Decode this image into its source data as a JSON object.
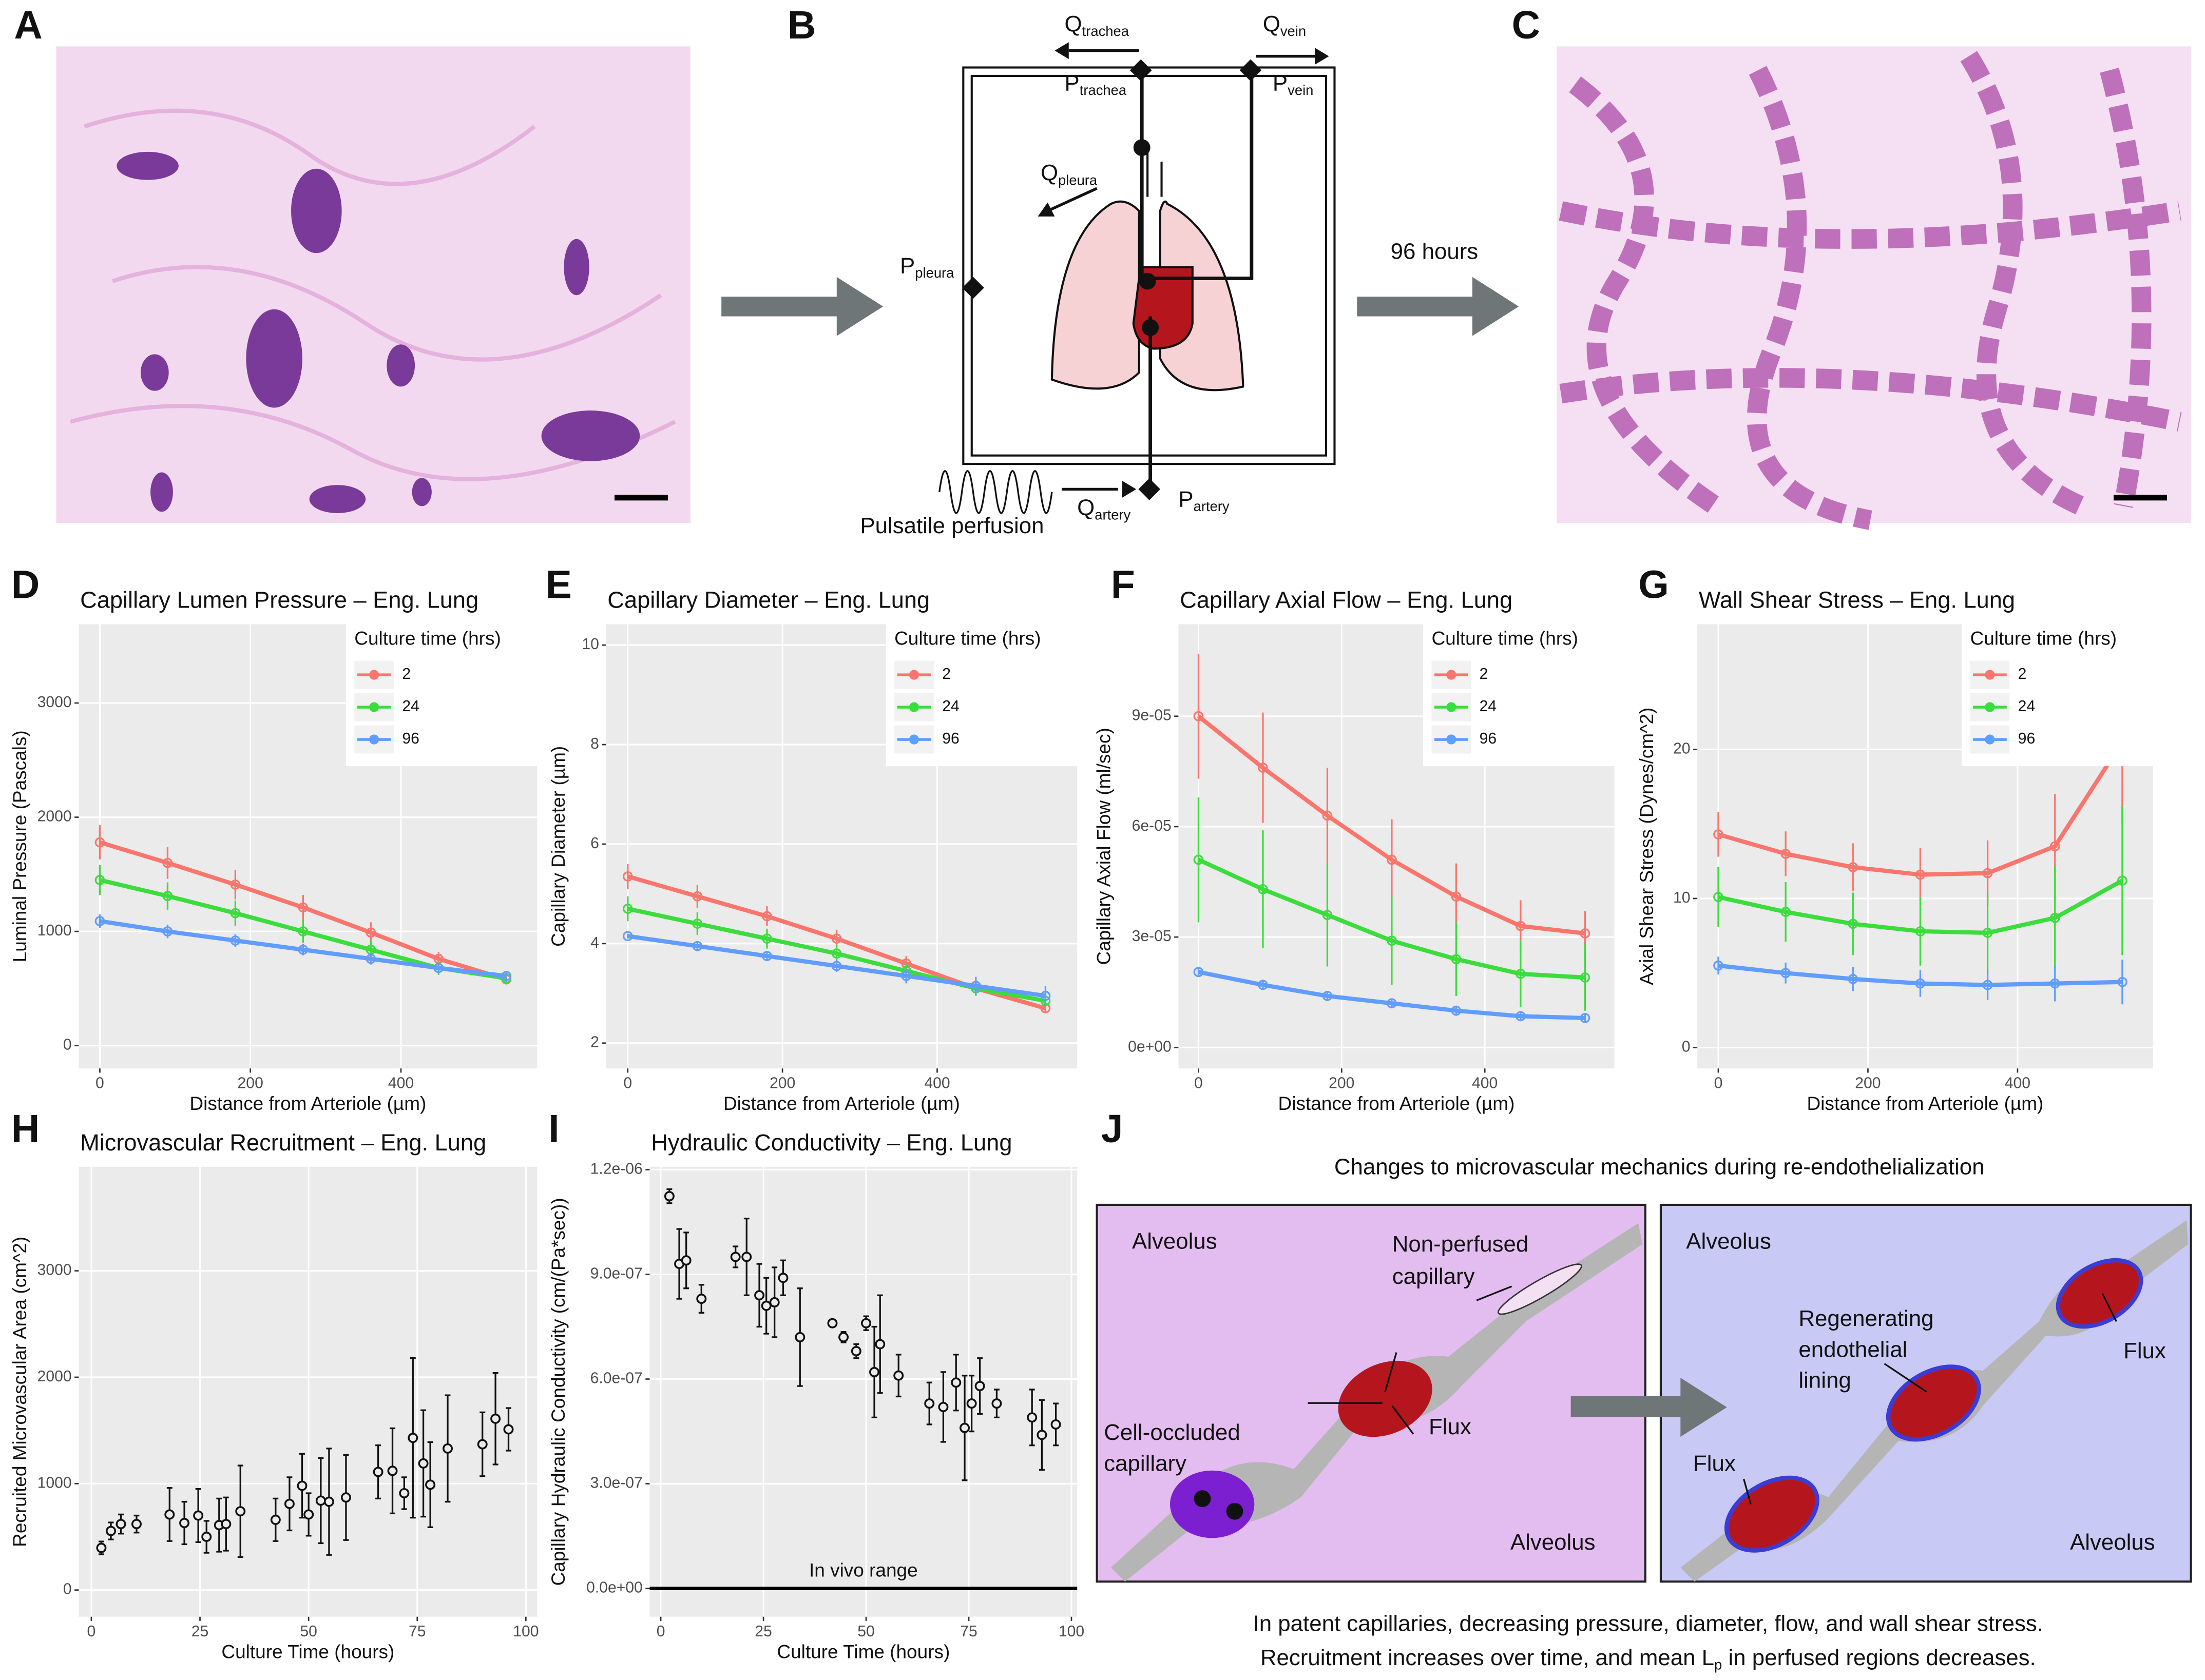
{
  "panel_labels": [
    "A",
    "B",
    "C",
    "D",
    "E",
    "F",
    "G",
    "H",
    "I",
    "J"
  ],
  "panel_b": {
    "labels": [
      {
        "main": "Q",
        "sub": "trachea"
      },
      {
        "main": "Q",
        "sub": "vein"
      },
      {
        "main": "P",
        "sub": "trachea"
      },
      {
        "main": "P",
        "sub": "vein"
      },
      {
        "main": "Q",
        "sub": "pleura"
      },
      {
        "main": "P",
        "sub": "pleura"
      },
      {
        "main": "Q",
        "sub": "artery"
      },
      {
        "main": "P",
        "sub": "artery"
      }
    ],
    "perfusion": "Pulsatile perfusion"
  },
  "arrow_label": "96 hours",
  "chart_data": [
    {
      "type": "line",
      "title": "Capillary Lumen Pressure – Eng. Lung",
      "x_label": "Distance from Arteriole (µm)",
      "y_label": "Luminal Pressure (Pascals)",
      "x": [
        0,
        90,
        180,
        270,
        360,
        450,
        540
      ],
      "xlim": [
        -28,
        581
      ],
      "xticks": [
        0,
        200,
        400
      ],
      "ylim": [
        -200,
        3690
      ],
      "yticks": [
        0,
        1000,
        2000,
        3000
      ],
      "grid": true,
      "legend_title": "Culture time (hrs)",
      "legend_position": "top-right",
      "series": [
        {
          "name": "2",
          "color": "#F8766D",
          "values": [
            1780,
            1600,
            1410,
            1210,
            990,
            760,
            580
          ],
          "errors": [
            150,
            140,
            130,
            110,
            90,
            60,
            20
          ]
        },
        {
          "name": "24",
          "color": "#3ddc3d",
          "values": [
            1450,
            1310,
            1160,
            1000,
            840,
            680,
            590
          ],
          "errors": [
            130,
            120,
            110,
            100,
            80,
            60,
            20
          ]
        },
        {
          "name": "96",
          "color": "#619CFF",
          "values": [
            1090,
            1000,
            920,
            840,
            760,
            680,
            610
          ],
          "errors": [
            60,
            60,
            55,
            50,
            50,
            45,
            40
          ]
        }
      ]
    },
    {
      "type": "line",
      "title": "Capillary Diameter – Eng. Lung",
      "x_label": "Distance from Arteriole (µm)",
      "y_label": "Capillary Diameter (µm)",
      "x": [
        0,
        90,
        180,
        270,
        360,
        450,
        540
      ],
      "xlim": [
        -28,
        581
      ],
      "xticks": [
        0,
        200,
        400
      ],
      "ylim": [
        1.49,
        10.42
      ],
      "yticks": [
        2,
        4,
        6,
        8,
        10
      ],
      "grid": true,
      "legend_title": "Culture time (hrs)",
      "legend_position": "top-right",
      "series": [
        {
          "name": "2",
          "color": "#F8766D",
          "values": [
            5.35,
            4.95,
            4.55,
            4.1,
            3.6,
            3.1,
            2.7
          ],
          "errors": [
            0.25,
            0.23,
            0.2,
            0.18,
            0.15,
            0.12,
            0.1
          ]
        },
        {
          "name": "24",
          "color": "#3ddc3d",
          "values": [
            4.7,
            4.4,
            4.1,
            3.8,
            3.45,
            3.1,
            2.85
          ],
          "errors": [
            0.25,
            0.23,
            0.2,
            0.18,
            0.15,
            0.15,
            0.15
          ]
        },
        {
          "name": "96",
          "color": "#619CFF",
          "values": [
            4.15,
            3.95,
            3.75,
            3.55,
            3.35,
            3.15,
            2.95
          ],
          "errors": [
            0.05,
            0.07,
            0.09,
            0.12,
            0.15,
            0.18,
            0.2
          ]
        }
      ]
    },
    {
      "type": "line",
      "title": "Capillary Axial Flow – Eng. Lung",
      "x_label": "Distance from Arteriole (µm)",
      "y_label": "Capillary Axial Flow (ml/sec)",
      "x": [
        0,
        90,
        180,
        270,
        360,
        450,
        540
      ],
      "xlim": [
        -28,
        581
      ],
      "xticks": [
        0,
        200,
        400
      ],
      "ylim": [
        -5.7e-06,
        0.000115
      ],
      "yticks": [
        {
          "value": 0,
          "label": "0e+00"
        },
        {
          "value": 3e-05,
          "label": "3e-05"
        },
        {
          "value": 6e-05,
          "label": "6e-05"
        },
        {
          "value": 9e-05,
          "label": "9e-05"
        }
      ],
      "grid": true,
      "legend_title": "Culture time (hrs)",
      "legend_position": "top-right",
      "series": [
        {
          "name": "2",
          "color": "#F8766D",
          "values": [
            9e-05,
            7.6e-05,
            6.3e-05,
            5.1e-05,
            4.1e-05,
            3.3e-05,
            3.1e-05
          ],
          "errors": [
            1.7e-05,
            1.5e-05,
            1.3e-05,
            1.1e-05,
            9e-06,
            7e-06,
            6e-06
          ]
        },
        {
          "name": "24",
          "color": "#3ddc3d",
          "values": [
            5.1e-05,
            4.3e-05,
            3.6e-05,
            2.9e-05,
            2.4e-05,
            2e-05,
            1.9e-05
          ],
          "errors": [
            1.7e-05,
            1.6e-05,
            1.4e-05,
            1.2e-05,
            1e-05,
            9e-06,
            9e-06
          ]
        },
        {
          "name": "96",
          "color": "#619CFF",
          "values": [
            2.05e-05,
            1.7e-05,
            1.4e-05,
            1.2e-05,
            1e-05,
            8.5e-06,
            8e-06
          ],
          "errors": [
            1e-06,
            1e-06,
            1e-06,
            1e-06,
            1e-06,
            1e-06,
            1e-06
          ]
        }
      ]
    },
    {
      "type": "line",
      "title": "Wall Shear Stress – Eng. Lung",
      "x_label": "Distance from Arteriole (µm)",
      "y_label": "Axial Shear Stress (Dynes/cm^2)",
      "x": [
        0,
        90,
        180,
        270,
        360,
        450,
        540
      ],
      "xlim": [
        -28,
        581
      ],
      "xticks": [
        0,
        200,
        400
      ],
      "ylim": [
        -1.4,
        28.4
      ],
      "yticks": [
        0,
        10,
        20
      ],
      "grid": true,
      "legend_title": "Culture time (hrs)",
      "legend_position": "top-right",
      "series": [
        {
          "name": "2",
          "color": "#F8766D",
          "values": [
            14.3,
            13.0,
            12.1,
            11.6,
            11.7,
            13.5,
            20.5
          ],
          "errors": [
            1.5,
            1.5,
            1.6,
            1.8,
            2.2,
            3.5,
            5.5
          ]
        },
        {
          "name": "24",
          "color": "#3ddc3d",
          "values": [
            10.1,
            9.1,
            8.3,
            7.8,
            7.7,
            8.7,
            11.2
          ],
          "errors": [
            2.0,
            2.0,
            2.1,
            2.3,
            2.7,
            3.5,
            5.0
          ]
        },
        {
          "name": "96",
          "color": "#619CFF",
          "values": [
            5.5,
            5.0,
            4.6,
            4.3,
            4.2,
            4.3,
            4.4
          ],
          "errors": [
            0.6,
            0.7,
            0.8,
            0.9,
            1.0,
            1.2,
            1.5
          ]
        }
      ]
    },
    {
      "type": "scatter",
      "title": "Microvascular Recruitment – Eng. Lung",
      "x_label": "Culture Time (hours)",
      "y_label": "Recruited Microvascular Area (cm^2)",
      "color": "#111111",
      "x": [
        2.3,
        4.5,
        6.8,
        10.4,
        18,
        21.4,
        24.6,
        26.5,
        29.4,
        31,
        34.3,
        42.4,
        45.6,
        48.5,
        50,
        52.8,
        54.7,
        58.6,
        66,
        69.3,
        72,
        74,
        76.4,
        78,
        82,
        90,
        93,
        96
      ],
      "values": [
        396,
        555,
        620,
        620,
        710,
        630,
        700,
        500,
        610,
        620,
        740,
        660,
        810,
        980,
        710,
        840,
        830,
        870,
        1110,
        1120,
        910,
        1430,
        1190,
        990,
        1330,
        1370,
        1610,
        1510
      ],
      "errors": [
        60,
        80,
        90,
        80,
        250,
        200,
        250,
        150,
        250,
        250,
        430,
        200,
        250,
        300,
        200,
        400,
        500,
        400,
        250,
        400,
        150,
        750,
        500,
        400,
        500,
        300,
        430,
        200
      ],
      "xlim": [
        -2.9,
        102.6
      ],
      "xticks": [
        0,
        25,
        50,
        75,
        100
      ],
      "ylim": [
        -251,
        3977
      ],
      "yticks": [
        0,
        1000,
        2000,
        3000
      ],
      "grid": true
    },
    {
      "type": "scatter",
      "title": "Hydraulic Conductivity – Eng. Lung",
      "x_label": "Culture Time (hours)",
      "y_label": "Capillary Hydraulic Conductivity (cm/(Pa*sec))",
      "color": "#111111",
      "x": [
        2.1,
        4.5,
        6.2,
        9.9,
        18.2,
        20.9,
        24,
        25.7,
        27.7,
        29.8,
        33.9,
        41.8,
        44.5,
        47.6,
        50,
        52,
        53.4,
        57.9,
        65.4,
        68.8,
        71.9,
        74,
        75.7,
        77.7,
        81.8,
        90.4,
        92.8,
        96.2
      ],
      "values": [
        1.124e-06,
        9.3e-07,
        9.4e-07,
        8.3e-07,
        9.5e-07,
        9.5e-07,
        8.4e-07,
        8.1e-07,
        8.2e-07,
        8.9e-07,
        7.2e-07,
        7.6e-07,
        7.2e-07,
        6.8e-07,
        7.6e-07,
        6.2e-07,
        7e-07,
        6.1e-07,
        5.3e-07,
        5.2e-07,
        5.9e-07,
        4.6e-07,
        5.3e-07,
        5.8e-07,
        5.3e-07,
        4.9e-07,
        4.4e-07,
        4.7e-07
      ],
      "errors": [
        2e-08,
        1e-07,
        8e-08,
        4e-08,
        3e-08,
        1.1e-07,
        9e-08,
        8e-08,
        1e-07,
        5e-08,
        1.4e-07,
        1e-08,
        1.5e-08,
        2e-08,
        2e-08,
        1.3e-07,
        1.4e-07,
        6e-08,
        6e-08,
        1e-07,
        8e-08,
        1.5e-07,
        8e-08,
        8e-08,
        4e-08,
        8e-08,
        1e-07,
        6e-08
      ],
      "xlim": [
        -2.7,
        101.4
      ],
      "xticks": [
        0,
        25,
        50,
        75,
        100
      ],
      "ylim": [
        -8.1e-08,
        1.208e-06
      ],
      "yticks": [
        {
          "value": 0,
          "label": "0.0e+00"
        },
        {
          "value": 3e-07,
          "label": "3.0e-07"
        },
        {
          "value": 6e-07,
          "label": "6.0e-07"
        },
        {
          "value": 9e-07,
          "label": "9.0e-07"
        },
        {
          "value": 1.2e-06,
          "label": "1.2e-06"
        }
      ],
      "grid": true,
      "hline": 0,
      "annotation": "In vivo range"
    }
  ],
  "panel_j": {
    "title": "Changes to microvascular mechanics during re-endothelialization",
    "left": {
      "alveolus_top": "Alveolus",
      "non_perfused": [
        "Non-perfused",
        "capillary"
      ],
      "occluded": [
        "Cell-occluded",
        "capillary"
      ],
      "flux": "Flux",
      "alveolus_bottom": "Alveolus"
    },
    "right": {
      "alveolus_top": "Alveolus",
      "regenerating": [
        "Regenerating",
        "endothelial",
        "lining"
      ],
      "flux_top": "Flux",
      "flux_bottom": "Flux",
      "alveolus_bottom": "Alveolus"
    },
    "caption_line1": "In patent capillaries, decreasing pressure, diameter, flow, and wall shear stress.",
    "caption_line2": {
      "before": "Recruitment increases over time, and mean L",
      "sub": "p",
      "after": " in perfused regions decreases."
    }
  }
}
